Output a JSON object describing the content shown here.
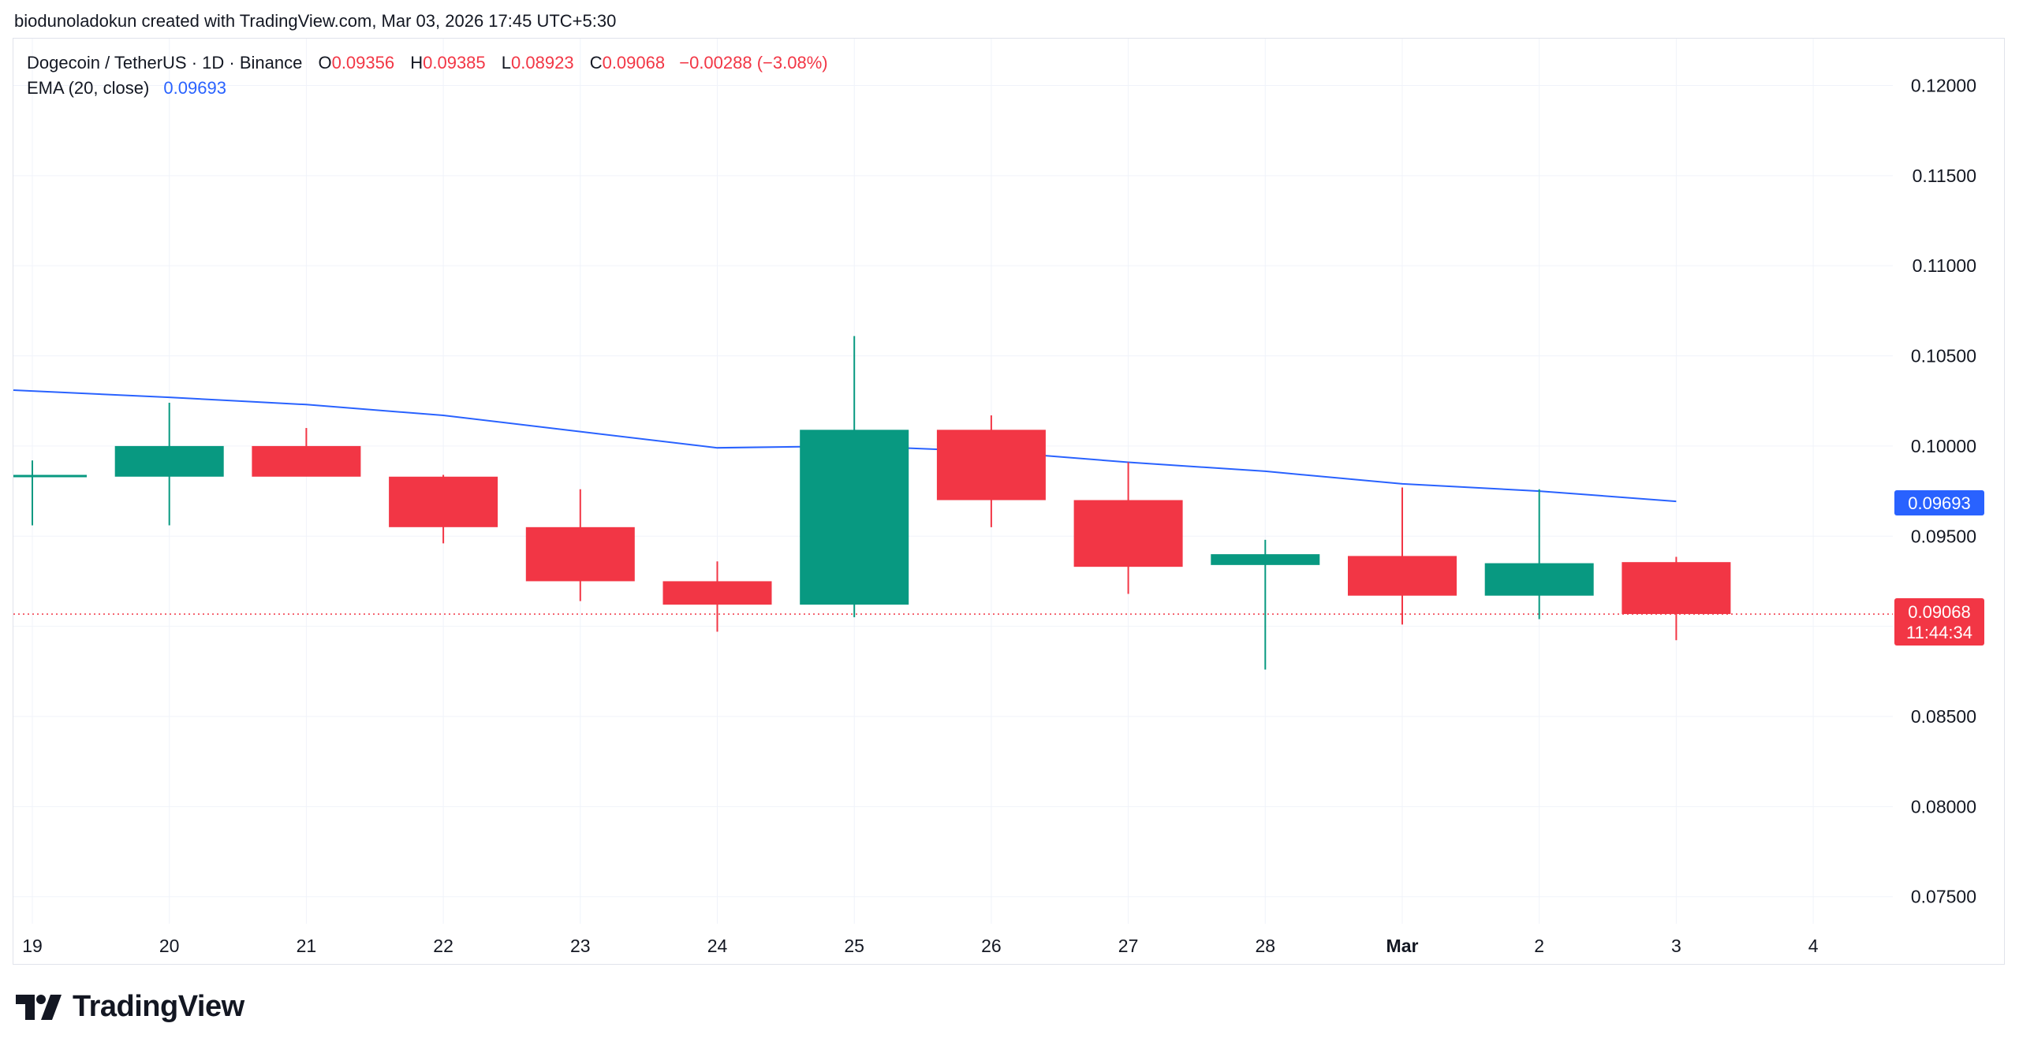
{
  "credit": "biodunoladokun created with TradingView.com, Mar 03, 2026 17:45 UTC+5:30",
  "legend": {
    "symbol": "Dogecoin / TetherUS · 1D · Binance",
    "open_key": "O",
    "open": "0.09356",
    "high_key": "H",
    "high": "0.09385",
    "low_key": "L",
    "low": "0.08923",
    "close_key": "C",
    "close": "0.09068",
    "change": "−0.00288 (−3.08%)",
    "ema_label": "EMA (20, close)",
    "ema_value": "0.09693"
  },
  "colors": {
    "up": "#089981",
    "down": "#f23645",
    "ema": "#2962ff",
    "grid": "#f0f3fa",
    "price_line": "#f23645"
  },
  "price_label": {
    "value": "0.09068",
    "countdown": "11:44:34"
  },
  "ema_label": {
    "value": "0.09693"
  },
  "brand": {
    "name": "TradingView",
    "icon": "tradingview-logo-icon"
  },
  "chart_data": {
    "type": "candlestick",
    "x_tick_labels": [
      "19",
      "20",
      "21",
      "22",
      "23",
      "24",
      "25",
      "26",
      "27",
      "28",
      "Mar",
      "2",
      "3",
      "4"
    ],
    "y_tick_labels": [
      "0.12000",
      "0.11500",
      "0.11000",
      "0.10500",
      "0.10000",
      "0.09500",
      "0.09000",
      "0.08500",
      "0.08000",
      "0.07500"
    ],
    "y_ticks": [
      0.12,
      0.115,
      0.11,
      0.105,
      0.1,
      0.095,
      0.09,
      0.085,
      0.08,
      0.075
    ],
    "ylim": [
      0.0735,
      0.1226
    ],
    "dates": [
      "Feb 19",
      "Feb 20",
      "Feb 21",
      "Feb 22",
      "Feb 23",
      "Feb 24",
      "Feb 25",
      "Feb 26",
      "Feb 27",
      "Feb 28",
      "Mar 1",
      "Mar 2",
      "Mar 3"
    ],
    "open": [
      0.0984,
      0.0983,
      0.1,
      0.0983,
      0.0955,
      0.0925,
      0.0912,
      0.1009,
      0.097,
      0.0934,
      0.0939,
      0.0917,
      0.09356
    ],
    "high": [
      0.0992,
      0.1024,
      0.101,
      0.0984,
      0.0976,
      0.0936,
      0.1061,
      0.1017,
      0.0991,
      0.0948,
      0.0977,
      0.0976,
      0.09385
    ],
    "low": [
      0.0956,
      0.0956,
      0.0984,
      0.0946,
      0.0914,
      0.0897,
      0.0905,
      0.0955,
      0.0918,
      0.0876,
      0.0901,
      0.0904,
      0.08923
    ],
    "close": [
      0.0984,
      0.1,
      0.0983,
      0.0955,
      0.0925,
      0.0912,
      0.1009,
      0.097,
      0.0933,
      0.094,
      0.0917,
      0.0935,
      0.09068
    ],
    "ema": [
      0.1031,
      0.1027,
      0.1023,
      0.1017,
      0.1008,
      0.0999,
      0.1,
      0.0997,
      0.0991,
      0.0986,
      0.0979,
      0.0975,
      0.09693
    ],
    "last_price": 0.09068
  }
}
